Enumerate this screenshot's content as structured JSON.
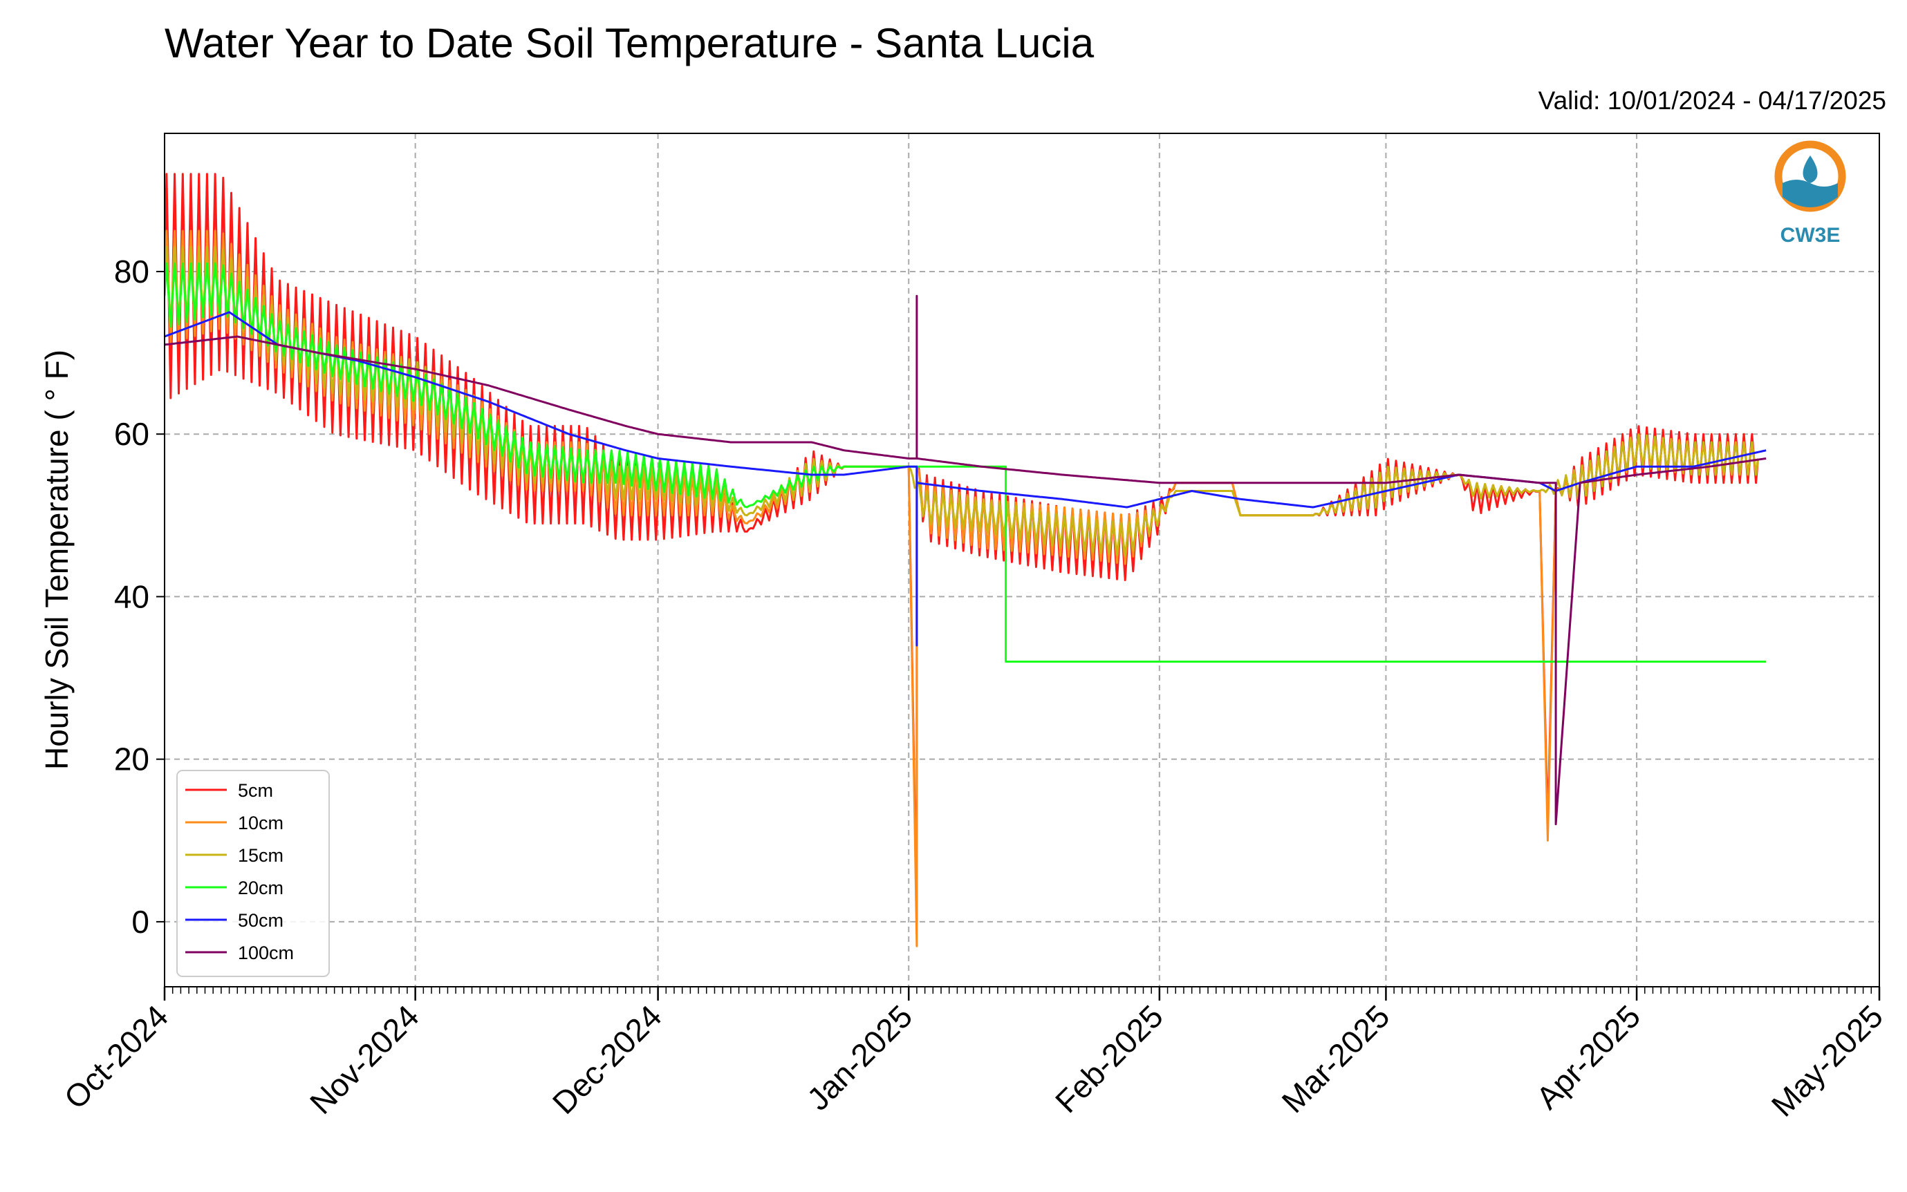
{
  "chart_data": {
    "type": "line",
    "title": "Water Year to Date Soil Temperature - Santa Lucia",
    "subtitle": "Valid: 10/01/2024 - 04/17/2025",
    "xlabel": "",
    "ylabel": "Hourly Soil Temperature ( ° F)",
    "ylim": [
      -8,
      97
    ],
    "yticks": [
      0,
      20,
      40,
      60,
      80
    ],
    "xlim": [
      "2024-10-01",
      "2025-05-01"
    ],
    "xticks": [
      {
        "date": "2024-10-01",
        "label": "Oct-2024"
      },
      {
        "date": "2024-11-01",
        "label": "Nov-2024"
      },
      {
        "date": "2024-12-01",
        "label": "Dec-2024"
      },
      {
        "date": "2025-01-01",
        "label": "Jan-2025"
      },
      {
        "date": "2025-02-01",
        "label": "Feb-2025"
      },
      {
        "date": "2025-03-01",
        "label": "Mar-2025"
      },
      {
        "date": "2025-04-01",
        "label": "Apr-2025"
      },
      {
        "date": "2025-05-01",
        "label": "May-2025"
      }
    ],
    "grid": true,
    "legend": "lower-left",
    "series": [
      {
        "name": "5cm",
        "color": "#ff1a1a",
        "x": [
          "2024-10-01",
          "2024-10-08",
          "2024-10-15",
          "2024-10-22",
          "2024-11-01",
          "2024-11-08",
          "2024-11-15",
          "2024-11-22",
          "2024-11-26",
          "2024-12-01",
          "2024-12-08",
          "2024-12-12",
          "2024-12-20",
          "2024-12-24",
          "2025-01-01",
          "2025-01-02",
          "2025-01-02",
          "2025-01-03",
          "2025-01-10",
          "2025-01-20",
          "2025-01-28",
          "2025-02-01",
          "2025-02-03",
          "2025-02-10",
          "2025-02-11",
          "2025-02-20",
          "2025-02-28",
          "2025-03-01",
          "2025-03-10",
          "2025-03-12",
          "2025-03-20",
          "2025-03-21",
          "2025-03-22",
          "2025-03-25",
          "2025-04-01",
          "2025-04-08",
          "2025-04-16"
        ],
        "amp": [
          14,
          12,
          7,
          8,
          7,
          7,
          6,
          6,
          5,
          5,
          4,
          0,
          3,
          0,
          0,
          0,
          0,
          4,
          4,
          4,
          4,
          2,
          0,
          0,
          0,
          0,
          3,
          3,
          0,
          2,
          0,
          0,
          0,
          3,
          3,
          3,
          3
        ],
        "values": [
          78,
          80,
          72,
          68,
          65,
          60,
          55,
          55,
          52,
          52,
          52,
          48,
          55,
          56,
          56,
          0,
          56,
          51,
          49,
          47,
          46,
          50,
          54,
          54,
          50,
          50,
          53,
          54,
          55,
          52,
          53,
          12,
          53,
          54,
          58,
          57,
          57
        ]
      },
      {
        "name": "10cm",
        "color": "#ff8c1a",
        "x": [
          "2024-10-01",
          "2024-10-08",
          "2024-10-15",
          "2024-10-22",
          "2024-11-01",
          "2024-11-08",
          "2024-11-15",
          "2024-11-22",
          "2024-11-26",
          "2024-12-01",
          "2024-12-08",
          "2024-12-12",
          "2024-12-20",
          "2024-12-24",
          "2025-01-01",
          "2025-01-02",
          "2025-01-02",
          "2025-01-03",
          "2025-01-10",
          "2025-01-20",
          "2025-01-28",
          "2025-02-01",
          "2025-02-03",
          "2025-02-10",
          "2025-02-11",
          "2025-02-20",
          "2025-02-28",
          "2025-03-01",
          "2025-03-10",
          "2025-03-12",
          "2025-03-20",
          "2025-03-21",
          "2025-03-22",
          "2025-03-25",
          "2025-04-01",
          "2025-04-08",
          "2025-04-16"
        ],
        "amp": [
          7,
          6,
          4,
          4,
          4,
          4,
          3,
          3,
          3,
          3,
          2,
          0,
          2,
          0,
          0,
          0,
          0,
          3,
          3,
          3,
          3,
          1,
          0,
          0,
          0,
          0,
          2,
          2,
          0,
          1,
          0,
          0,
          0,
          2,
          2,
          2,
          2
        ],
        "values": [
          78,
          79,
          72,
          68,
          65,
          61,
          56,
          56,
          53,
          53,
          52,
          49,
          55,
          56,
          56,
          -3,
          56,
          51,
          49,
          48,
          47,
          50,
          54,
          54,
          50,
          50,
          53,
          54,
          55,
          53,
          53,
          10,
          53,
          54,
          58,
          57,
          57
        ]
      },
      {
        "name": "15cm",
        "color": "#c8b414",
        "x": [
          "2024-10-01",
          "2024-10-08",
          "2024-10-15",
          "2024-10-22",
          "2024-11-01",
          "2024-11-08",
          "2024-11-15",
          "2024-11-22",
          "2024-11-26",
          "2024-12-01",
          "2024-12-08",
          "2024-12-12",
          "2024-12-20",
          "2024-12-24",
          "2025-01-01",
          "2025-01-03",
          "2025-01-10",
          "2025-01-20",
          "2025-01-28",
          "2025-02-01",
          "2025-02-03",
          "2025-02-10",
          "2025-02-11",
          "2025-02-20",
          "2025-02-28",
          "2025-03-01",
          "2025-03-10",
          "2025-03-12",
          "2025-03-20",
          "2025-03-25",
          "2025-04-01",
          "2025-04-08",
          "2025-04-16"
        ],
        "amp": [
          5,
          4,
          3,
          3,
          3,
          3,
          2,
          2,
          2,
          2,
          2,
          0,
          2,
          0,
          0,
          2,
          2,
          2,
          2,
          1,
          0,
          0,
          0,
          0,
          2,
          2,
          0,
          1,
          0,
          2,
          2,
          2,
          2
        ],
        "values": [
          78,
          79,
          72,
          68,
          66,
          61,
          56,
          56,
          54,
          54,
          53,
          50,
          55,
          56,
          56,
          51,
          50,
          48,
          47,
          50,
          53,
          53,
          50,
          50,
          53,
          54,
          55,
          53,
          53,
          54,
          58,
          57,
          57
        ]
      },
      {
        "name": "20cm",
        "color": "#1aff1a",
        "x": [
          "2024-10-01",
          "2024-10-08",
          "2024-10-15",
          "2024-10-22",
          "2024-11-01",
          "2024-11-08",
          "2024-11-15",
          "2024-11-22",
          "2024-11-26",
          "2024-12-01",
          "2024-12-08",
          "2024-12-12",
          "2024-12-20",
          "2024-12-24",
          "2025-01-01",
          "2025-01-13",
          "2025-01-13",
          "2025-04-17"
        ],
        "amp": [
          4,
          3,
          2,
          2,
          2,
          2,
          2,
          2,
          2,
          2,
          2,
          0,
          1,
          0,
          0,
          0,
          0,
          0
        ],
        "values": [
          77,
          78,
          72,
          69,
          66,
          62,
          57,
          56,
          56,
          55,
          54,
          51,
          55,
          56,
          56,
          56,
          32,
          32
        ]
      },
      {
        "name": "50cm",
        "color": "#1a1aff",
        "x": [
          "2024-10-01",
          "2024-10-09",
          "2024-10-15",
          "2024-10-25",
          "2024-11-01",
          "2024-11-10",
          "2024-11-20",
          "2024-11-27",
          "2024-12-01",
          "2024-12-10",
          "2024-12-20",
          "2024-12-24",
          "2025-01-01",
          "2025-01-02",
          "2025-01-02",
          "2025-01-02",
          "2025-01-10",
          "2025-01-20",
          "2025-01-28",
          "2025-02-01",
          "2025-02-05",
          "2025-02-11",
          "2025-02-20",
          "2025-03-01",
          "2025-03-10",
          "2025-03-20",
          "2025-03-22",
          "2025-03-25",
          "2025-04-01",
          "2025-04-08",
          "2025-04-17"
        ],
        "amp": [
          0,
          0,
          0,
          0,
          0,
          0,
          0,
          0,
          0,
          0,
          0,
          0,
          0,
          0,
          0,
          0,
          0,
          0,
          0,
          0,
          0,
          0,
          0,
          0,
          0,
          0,
          0,
          0,
          0,
          0,
          0
        ],
        "values": [
          72,
          75,
          71,
          69,
          67,
          64,
          60,
          58,
          57,
          56,
          55,
          55,
          56,
          56,
          34,
          54,
          53,
          52,
          51,
          52,
          53,
          52,
          51,
          53,
          55,
          54,
          53,
          54,
          56,
          56,
          58
        ]
      },
      {
        "name": "100cm",
        "color": "#800060",
        "x": [
          "2024-10-01",
          "2024-10-10",
          "2024-10-20",
          "2024-11-01",
          "2024-11-10",
          "2024-11-20",
          "2024-11-27",
          "2024-12-01",
          "2024-12-10",
          "2024-12-20",
          "2024-12-24",
          "2025-01-01",
          "2025-01-02",
          "2025-01-02",
          "2025-01-02",
          "2025-01-10",
          "2025-01-20",
          "2025-02-01",
          "2025-02-10",
          "2025-02-20",
          "2025-03-01",
          "2025-03-10",
          "2025-03-20",
          "2025-03-22",
          "2025-03-22",
          "2025-03-25",
          "2025-04-01",
          "2025-04-10",
          "2025-04-17"
        ],
        "amp": [
          0,
          0,
          0,
          0,
          0,
          0,
          0,
          0,
          0,
          0,
          0,
          0,
          0,
          0,
          0,
          0,
          0,
          0,
          0,
          0,
          0,
          0,
          0,
          0,
          0,
          0,
          0,
          0,
          0
        ],
        "values": [
          71,
          72,
          70,
          68,
          66,
          63,
          61,
          60,
          59,
          59,
          58,
          57,
          57,
          77,
          57,
          56,
          55,
          54,
          54,
          54,
          54,
          55,
          54,
          54,
          12,
          54,
          55,
          56,
          57
        ]
      }
    ]
  },
  "logo": {
    "text": "CW3E",
    "accent": "#f28c1e",
    "brand": "#2a8bb0"
  }
}
